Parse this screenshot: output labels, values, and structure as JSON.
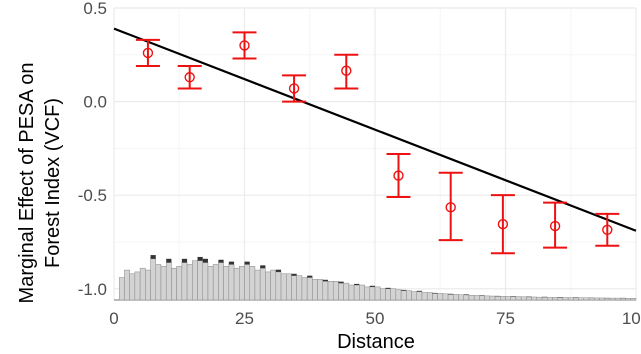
{
  "chart_data": {
    "type": "scatter",
    "title": "",
    "xlabel": "Distance",
    "ylabel_lines": [
      "Marginal Effect of PESA on",
      "Forest Index (VCF)"
    ],
    "xlim": [
      0,
      100
    ],
    "ylim": [
      -1.06,
      0.5
    ],
    "x_ticks": [
      0,
      25,
      50,
      75,
      100
    ],
    "x_tick_labels": [
      "0",
      "25",
      "50",
      "75",
      "100"
    ],
    "y_ticks": [
      -1.0,
      -0.5,
      0.0,
      0.5
    ],
    "y_tick_labels": [
      "-1.0",
      "-0.5",
      "0.0",
      "0.5"
    ],
    "grid": true,
    "colors": {
      "points": "#ee1111",
      "line": "#000000",
      "hist_fill": "#d3d3d3",
      "hist_dark": "#333333",
      "grid_major": "#ebebeb",
      "grid_minor": "#f5f5f5"
    },
    "fit_line": {
      "x": [
        0,
        100
      ],
      "y": [
        0.39,
        -0.69
      ]
    },
    "estimates": [
      {
        "x": 6.5,
        "y": 0.26,
        "lo": 0.19,
        "hi": 0.33
      },
      {
        "x": 14.5,
        "y": 0.13,
        "lo": 0.07,
        "hi": 0.19
      },
      {
        "x": 25,
        "y": 0.3,
        "lo": 0.23,
        "hi": 0.37
      },
      {
        "x": 34.5,
        "y": 0.07,
        "lo": 0.0,
        "hi": 0.14
      },
      {
        "x": 44.5,
        "y": 0.165,
        "lo": 0.07,
        "hi": 0.25
      },
      {
        "x": 54.5,
        "y": -0.395,
        "lo": -0.51,
        "hi": -0.28
      },
      {
        "x": 64.5,
        "y": -0.565,
        "lo": -0.74,
        "hi": -0.38
      },
      {
        "x": 74.5,
        "y": -0.655,
        "lo": -0.81,
        "hi": -0.5
      },
      {
        "x": 84.5,
        "y": -0.665,
        "lo": -0.78,
        "hi": -0.54
      },
      {
        "x": 94.5,
        "y": -0.685,
        "lo": -0.77,
        "hi": -0.6
      }
    ],
    "histogram": {
      "baseline": -1.06,
      "bin_start": 1,
      "bin_width": 1,
      "heights": [
        0.12,
        0.16,
        0.14,
        0.15,
        0.17,
        0.16,
        0.22,
        0.19,
        0.18,
        0.2,
        0.17,
        0.18,
        0.2,
        0.19,
        0.21,
        0.21,
        0.2,
        0.18,
        0.19,
        0.2,
        0.18,
        0.19,
        0.17,
        0.18,
        0.19,
        0.18,
        0.16,
        0.17,
        0.15,
        0.16,
        0.15,
        0.14,
        0.14,
        0.13,
        0.13,
        0.12,
        0.12,
        0.11,
        0.11,
        0.1,
        0.1,
        0.1,
        0.09,
        0.09,
        0.08,
        0.08,
        0.08,
        0.07,
        0.07,
        0.07,
        0.06,
        0.06,
        0.06,
        0.055,
        0.05,
        0.05,
        0.045,
        0.045,
        0.04,
        0.04,
        0.035,
        0.035,
        0.033,
        0.03,
        0.03,
        0.028,
        0.027,
        0.025,
        0.024,
        0.023,
        0.022,
        0.021,
        0.02,
        0.02,
        0.019,
        0.018,
        0.018,
        0.017,
        0.016,
        0.016,
        0.015,
        0.015,
        0.014,
        0.014,
        0.013,
        0.013,
        0.013,
        0.012,
        0.012,
        0.012,
        0.011,
        0.011,
        0.011,
        0.01,
        0.01,
        0.01,
        0.01,
        0.009,
        0.009
      ],
      "dark_tops": [
        0.0,
        0.0,
        0.0,
        0.0,
        0.0,
        0.0,
        0.02,
        0.0,
        0.0,
        0.02,
        0.0,
        0.0,
        0.02,
        0.0,
        0.0,
        0.02,
        0.02,
        0.0,
        0.0,
        0.015,
        0.0,
        0.015,
        0.0,
        0.0,
        0.015,
        0.0,
        0.0,
        0.015,
        0.0,
        0.0,
        0.012,
        0.0,
        0.0,
        0.01,
        0.0,
        0.0,
        0.01,
        0.0,
        0.0,
        0.008,
        0.0,
        0.0,
        0.008,
        0.0,
        0.0,
        0.006,
        0.0,
        0.0,
        0.006,
        0.0,
        0.0,
        0.005,
        0.0,
        0.0,
        0.004,
        0.0,
        0.0,
        0.004,
        0.0,
        0.0,
        0.003,
        0.0,
        0.0,
        0.003,
        0.0,
        0.0,
        0.003,
        0.0,
        0.0,
        0.002,
        0.0,
        0.0,
        0.002,
        0.0,
        0.0,
        0.002,
        0.0,
        0.0,
        0.002,
        0.0,
        0.0,
        0.002,
        0.0,
        0.0,
        0.002,
        0.0,
        0.0,
        0.002,
        0.0,
        0.0,
        0.001,
        0.0,
        0.0,
        0.001,
        0.0,
        0.0,
        0.001,
        0.0,
        0.0
      ]
    }
  }
}
